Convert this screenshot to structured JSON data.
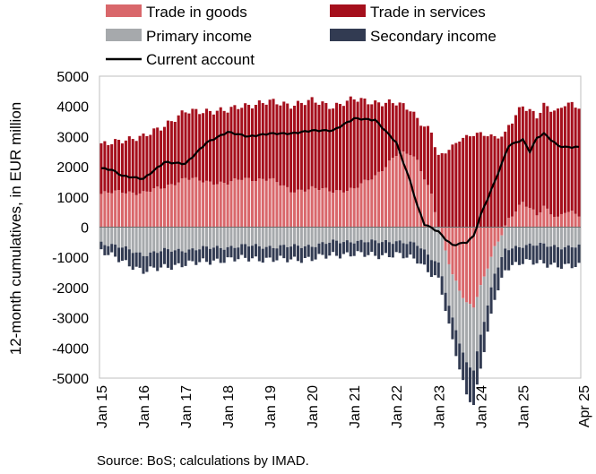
{
  "chart_data": {
    "type": "bar",
    "stacked": true,
    "ylabel": "12-month cumulatives, in EUR million",
    "ylim": [
      -5000,
      5000
    ],
    "y_ticks": [
      5000,
      4000,
      3000,
      2000,
      1000,
      0,
      -1000,
      -2000,
      -3000,
      -4000,
      -5000
    ],
    "x_tick_labels": [
      "Jan 15",
      "Jan 16",
      "Jan 17",
      "Jan 18",
      "Jan 19",
      "Jan 20",
      "Jan 21",
      "Jan 22",
      "Jan 23",
      "Jan 24",
      "Jan 25",
      "Apr 25"
    ],
    "grid": false,
    "legend_position": "top",
    "series": [
      {
        "name": "Trade in goods",
        "kind": "bar",
        "color": "#d9676b",
        "anchors": [
          [
            0,
            1100
          ],
          [
            6,
            1180
          ],
          [
            12,
            1130
          ],
          [
            18,
            1330
          ],
          [
            24,
            1620
          ],
          [
            30,
            1500
          ],
          [
            36,
            1460
          ],
          [
            40,
            1590
          ],
          [
            48,
            1600
          ],
          [
            54,
            1200
          ],
          [
            60,
            1280
          ],
          [
            66,
            1200
          ],
          [
            72,
            1260
          ],
          [
            78,
            1700
          ],
          [
            84,
            2400
          ],
          [
            88,
            2420
          ],
          [
            90,
            2200
          ],
          [
            94,
            1100
          ],
          [
            96,
            0
          ],
          [
            100,
            -1600
          ],
          [
            104,
            -2500
          ],
          [
            106,
            -2600
          ],
          [
            108,
            -2000
          ],
          [
            112,
            -700
          ],
          [
            116,
            300
          ],
          [
            120,
            800
          ],
          [
            124,
            400
          ],
          [
            126,
            700
          ],
          [
            130,
            300
          ],
          [
            132,
            500
          ],
          [
            136,
            400
          ]
        ]
      },
      {
        "name": "Trade in services",
        "kind": "bar",
        "color": "#a50f1c",
        "anchors": [
          [
            0,
            1600
          ],
          [
            6,
            1720
          ],
          [
            12,
            1850
          ],
          [
            18,
            2050
          ],
          [
            24,
            2200
          ],
          [
            30,
            2350
          ],
          [
            36,
            2400
          ],
          [
            42,
            2450
          ],
          [
            48,
            2550
          ],
          [
            54,
            2850
          ],
          [
            60,
            2900
          ],
          [
            66,
            2800
          ],
          [
            72,
            2980
          ],
          [
            78,
            2430
          ],
          [
            84,
            1700
          ],
          [
            90,
            1400
          ],
          [
            96,
            2330
          ],
          [
            102,
            2900
          ],
          [
            108,
            3100
          ],
          [
            114,
            3000
          ],
          [
            120,
            3200
          ],
          [
            126,
            3350
          ],
          [
            130,
            3500
          ],
          [
            132,
            3580
          ],
          [
            136,
            3620
          ]
        ]
      },
      {
        "name": "Primary income",
        "kind": "bar",
        "color": "#a6a9ac",
        "anchors": [
          [
            0,
            -500
          ],
          [
            6,
            -690
          ],
          [
            12,
            -900
          ],
          [
            18,
            -780
          ],
          [
            24,
            -750
          ],
          [
            30,
            -700
          ],
          [
            36,
            -650
          ],
          [
            42,
            -620
          ],
          [
            48,
            -640
          ],
          [
            54,
            -650
          ],
          [
            60,
            -600
          ],
          [
            66,
            -500
          ],
          [
            72,
            -450
          ],
          [
            78,
            -500
          ],
          [
            84,
            -450
          ],
          [
            90,
            -600
          ],
          [
            96,
            -1200
          ],
          [
            100,
            -1500
          ],
          [
            104,
            -2000
          ],
          [
            106,
            -2050
          ],
          [
            108,
            -1600
          ],
          [
            112,
            -900
          ],
          [
            116,
            -700
          ],
          [
            120,
            -600
          ],
          [
            126,
            -600
          ],
          [
            132,
            -650
          ],
          [
            136,
            -650
          ]
        ]
      },
      {
        "name": "Secondary income",
        "kind": "bar",
        "color": "#323b52",
        "anchors": [
          [
            0,
            -280
          ],
          [
            6,
            -450
          ],
          [
            12,
            -550
          ],
          [
            18,
            -560
          ],
          [
            24,
            -460
          ],
          [
            30,
            -450
          ],
          [
            36,
            -420
          ],
          [
            42,
            -420
          ],
          [
            48,
            -430
          ],
          [
            54,
            -430
          ],
          [
            60,
            -440
          ],
          [
            66,
            -430
          ],
          [
            72,
            -430
          ],
          [
            78,
            -450
          ],
          [
            84,
            -450
          ],
          [
            90,
            -500
          ],
          [
            96,
            -550
          ],
          [
            100,
            -700
          ],
          [
            104,
            -1000
          ],
          [
            106,
            -1200
          ],
          [
            108,
            -1100
          ],
          [
            112,
            -800
          ],
          [
            116,
            -600
          ],
          [
            120,
            -550
          ],
          [
            126,
            -600
          ],
          [
            132,
            -650
          ],
          [
            136,
            -650
          ]
        ]
      },
      {
        "name": "Current account",
        "kind": "line",
        "color": "#000000",
        "anchors": [
          [
            0,
            1950
          ],
          [
            3,
            1900
          ],
          [
            6,
            1700
          ],
          [
            12,
            1600
          ],
          [
            18,
            2150
          ],
          [
            24,
            2100
          ],
          [
            30,
            2800
          ],
          [
            36,
            3150
          ],
          [
            42,
            3000
          ],
          [
            48,
            3100
          ],
          [
            54,
            3100
          ],
          [
            60,
            3200
          ],
          [
            66,
            3200
          ],
          [
            72,
            3600
          ],
          [
            78,
            3550
          ],
          [
            84,
            2800
          ],
          [
            88,
            1500
          ],
          [
            90,
            700
          ],
          [
            92,
            100
          ],
          [
            96,
            -150
          ],
          [
            98,
            -400
          ],
          [
            100,
            -600
          ],
          [
            104,
            -500
          ],
          [
            106,
            -300
          ],
          [
            108,
            400
          ],
          [
            112,
            1500
          ],
          [
            116,
            2700
          ],
          [
            120,
            2900
          ],
          [
            122,
            2500
          ],
          [
            124,
            2950
          ],
          [
            126,
            3100
          ],
          [
            128,
            2900
          ],
          [
            130,
            2700
          ],
          [
            132,
            2650
          ],
          [
            136,
            2650
          ]
        ]
      }
    ]
  },
  "source_note": "Source: BoS; calculations by IMAD."
}
